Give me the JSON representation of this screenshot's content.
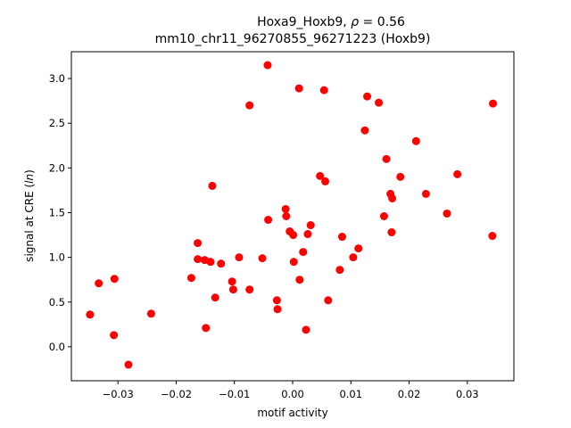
{
  "chart_data": {
    "type": "scatter",
    "title_line1_prefix": "Hoxa9_Hoxb9, ",
    "title_rho_symbol": "ρ",
    "title_rho_value": " = 0.56",
    "title_line2": "mm10_chr11_96270855_96271223 (Hoxb9)",
    "xlabel": "motif activity",
    "ylabel_prefix": "signal at CRE (",
    "ylabel_italic": "ln",
    "ylabel_suffix": ")",
    "xlim": [
      -0.038,
      0.038
    ],
    "ylim": [
      -0.38,
      3.3
    ],
    "xticks": [
      -0.03,
      -0.02,
      -0.01,
      0.0,
      0.01,
      0.02,
      0.03
    ],
    "xtick_labels": [
      "−0.03",
      "−0.02",
      "−0.01",
      "0.00",
      "0.01",
      "0.02",
      "0.03"
    ],
    "yticks": [
      0.0,
      0.5,
      1.0,
      1.5,
      2.0,
      2.5,
      3.0
    ],
    "ytick_labels": [
      "0.0",
      "0.5",
      "1.0",
      "1.5",
      "2.0",
      "2.5",
      "3.0"
    ],
    "grid": false,
    "point_color": "#ff0000",
    "points": [
      [
        -0.0348,
        0.36
      ],
      [
        -0.0333,
        0.71
      ],
      [
        -0.0306,
        0.76
      ],
      [
        -0.0307,
        0.13
      ],
      [
        -0.0282,
        -0.2
      ],
      [
        -0.0243,
        0.37
      ],
      [
        -0.0174,
        0.77
      ],
      [
        -0.0163,
        1.16
      ],
      [
        -0.0163,
        0.98
      ],
      [
        -0.0151,
        0.97
      ],
      [
        -0.0149,
        0.21
      ],
      [
        -0.0141,
        0.95
      ],
      [
        -0.0138,
        1.8
      ],
      [
        -0.0133,
        0.55
      ],
      [
        -0.0123,
        0.93
      ],
      [
        -0.0104,
        0.73
      ],
      [
        -0.0102,
        0.64
      ],
      [
        -0.0092,
        1.0
      ],
      [
        -0.0074,
        2.7
      ],
      [
        -0.0074,
        0.64
      ],
      [
        -0.0052,
        0.99
      ],
      [
        -0.0043,
        3.15
      ],
      [
        -0.0042,
        1.42
      ],
      [
        -0.0027,
        0.52
      ],
      [
        -0.0026,
        0.42
      ],
      [
        -0.0012,
        1.54
      ],
      [
        -0.0011,
        1.46
      ],
      [
        -0.0005,
        1.29
      ],
      [
        0.0001,
        1.25
      ],
      [
        0.0002,
        0.95
      ],
      [
        0.0011,
        2.89
      ],
      [
        0.0012,
        0.75
      ],
      [
        0.0018,
        1.06
      ],
      [
        0.0023,
        0.19
      ],
      [
        0.0026,
        1.26
      ],
      [
        0.0031,
        1.36
      ],
      [
        0.0047,
        1.91
      ],
      [
        0.0054,
        2.87
      ],
      [
        0.0056,
        1.85
      ],
      [
        0.0061,
        0.52
      ],
      [
        0.0081,
        0.86
      ],
      [
        0.0085,
        1.23
      ],
      [
        0.0104,
        1.0
      ],
      [
        0.0113,
        1.1
      ],
      [
        0.0124,
        2.42
      ],
      [
        0.0128,
        2.8
      ],
      [
        0.0148,
        2.73
      ],
      [
        0.0157,
        1.46
      ],
      [
        0.0161,
        2.1
      ],
      [
        0.0168,
        1.71
      ],
      [
        0.017,
        1.28
      ],
      [
        0.0171,
        1.66
      ],
      [
        0.0185,
        1.9
      ],
      [
        0.0212,
        2.3
      ],
      [
        0.0229,
        1.71
      ],
      [
        0.0265,
        1.49
      ],
      [
        0.0283,
        1.93
      ],
      [
        0.0344,
        2.72
      ],
      [
        0.0343,
        1.24
      ]
    ]
  }
}
